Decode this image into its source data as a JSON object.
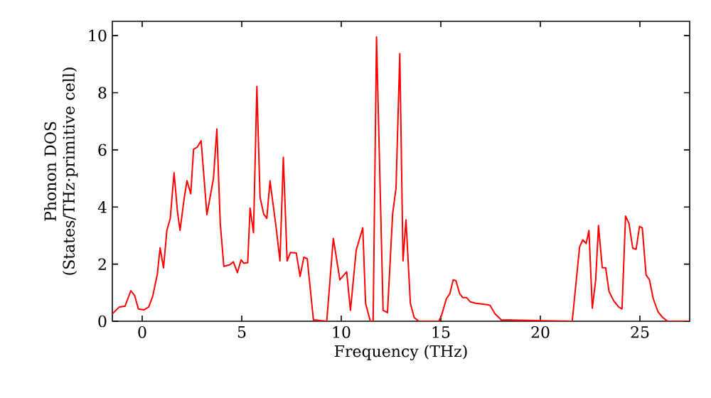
{
  "chart_data": {
    "type": "line",
    "xlabel": "Frequency (THz)",
    "ylabel": "Phonon DOS (States/THz·primitive cell)",
    "xlim": [
      -1.5,
      27.5
    ],
    "ylim": [
      0,
      10.5
    ],
    "xticks": [
      0,
      5,
      10,
      15,
      20,
      25
    ],
    "yticks": [
      0,
      2,
      4,
      6,
      8,
      10
    ],
    "grid": false,
    "marker": "none",
    "line_style": "solid",
    "series": [
      {
        "color": "#ff0000",
        "x": [
          -1.5,
          -1.15,
          -0.86,
          -0.57,
          -0.38,
          -0.19,
          0.1,
          0.33,
          0.53,
          0.76,
          0.9,
          1.07,
          1.24,
          1.41,
          1.6,
          1.77,
          1.9,
          2.1,
          2.25,
          2.44,
          2.58,
          2.77,
          2.96,
          3.25,
          3.58,
          3.75,
          3.92,
          4.1,
          4.4,
          4.58,
          4.78,
          4.97,
          5.1,
          5.3,
          5.42,
          5.59,
          5.76,
          5.92,
          6.1,
          6.26,
          6.42,
          6.73,
          6.92,
          7.09,
          7.28,
          7.45,
          7.74,
          7.93,
          8.12,
          8.29,
          8.6,
          9.27,
          9.6,
          9.93,
          10.27,
          10.46,
          10.75,
          11.08,
          11.22,
          11.46,
          11.6,
          11.77,
          12.1,
          12.32,
          12.58,
          12.75,
          12.94,
          13.1,
          13.25,
          13.47,
          13.66,
          13.9,
          14.9,
          15.04,
          15.28,
          15.45,
          15.62,
          15.76,
          15.95,
          16.1,
          16.29,
          16.48,
          16.76,
          17.36,
          17.48,
          17.72,
          18.03,
          21.6,
          21.97,
          22.13,
          22.3,
          22.44,
          22.61,
          22.78,
          22.92,
          23.11,
          23.28,
          23.45,
          23.69,
          23.93,
          24.1,
          24.28,
          24.45,
          24.64,
          24.81,
          24.98,
          25.12,
          25.31,
          25.48,
          25.67,
          25.91,
          26.15,
          26.39,
          27.5
        ],
        "values": [
          0.26,
          0.5,
          0.53,
          1.07,
          0.9,
          0.43,
          0.4,
          0.5,
          0.88,
          1.65,
          2.57,
          1.87,
          3.18,
          3.6,
          5.2,
          3.85,
          3.18,
          4.26,
          4.92,
          4.46,
          6.02,
          6.1,
          6.32,
          3.73,
          5.0,
          6.73,
          3.43,
          1.92,
          1.98,
          2.08,
          1.7,
          2.15,
          2.03,
          2.05,
          3.96,
          3.1,
          8.22,
          4.34,
          3.76,
          3.6,
          4.92,
          3.27,
          2.11,
          5.74,
          2.11,
          2.41,
          2.39,
          1.57,
          2.24,
          2.19,
          0.05,
          0,
          2.9,
          1.45,
          1.73,
          0.38,
          2.49,
          3.27,
          0.63,
          0,
          0,
          9.95,
          0.38,
          0.3,
          3.76,
          4.67,
          9.37,
          2.11,
          3.55,
          0.63,
          0.13,
          0,
          0,
          0.21,
          0.79,
          0.96,
          1.45,
          1.42,
          0.96,
          0.83,
          0.83,
          0.68,
          0.63,
          0.58,
          0.55,
          0.26,
          0.05,
          0,
          2.6,
          2.85,
          2.72,
          3.18,
          0.46,
          1.45,
          3.35,
          1.87,
          1.87,
          1.04,
          0.71,
          0.5,
          0.43,
          3.68,
          3.43,
          2.56,
          2.52,
          3.32,
          3.27,
          1.62,
          1.45,
          0.79,
          0.33,
          0.13,
          0,
          0
        ]
      }
    ]
  }
}
